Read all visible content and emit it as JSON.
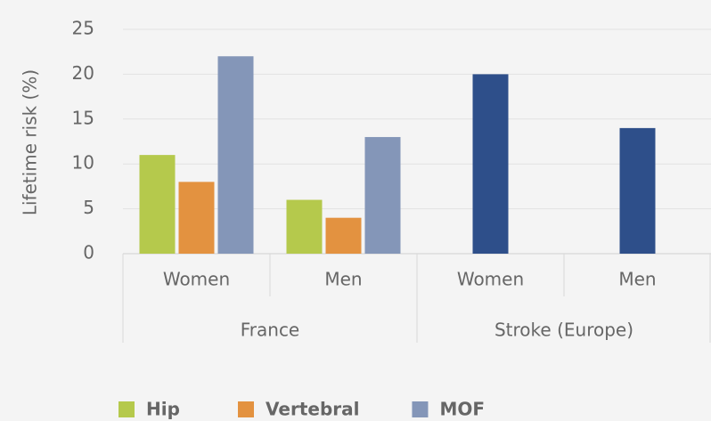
{
  "chart_data": {
    "type": "bar",
    "categories": [
      "Women",
      "Men",
      "Women",
      "Men"
    ],
    "groups": [
      "France",
      "Stroke (Europe)"
    ],
    "y_label": "Lifetime risk (%)",
    "series": [
      {
        "name": "Hip",
        "color": "#b5c94c",
        "values": [
          11,
          6,
          null,
          null
        ]
      },
      {
        "name": "Vertebral",
        "color": "#e39240",
        "values": [
          8,
          4,
          null,
          null
        ]
      },
      {
        "name": "MOF",
        "color": "#8496b8",
        "values": [
          22,
          13,
          null,
          null
        ]
      },
      {
        "color": "#2e4f8a",
        "values": [
          null,
          null,
          20,
          14
        ]
      }
    ],
    "ylim": [
      0,
      25
    ],
    "yticks": [
      0,
      5,
      10,
      15,
      20,
      25
    ],
    "grid": true,
    "legend": "bottom"
  }
}
